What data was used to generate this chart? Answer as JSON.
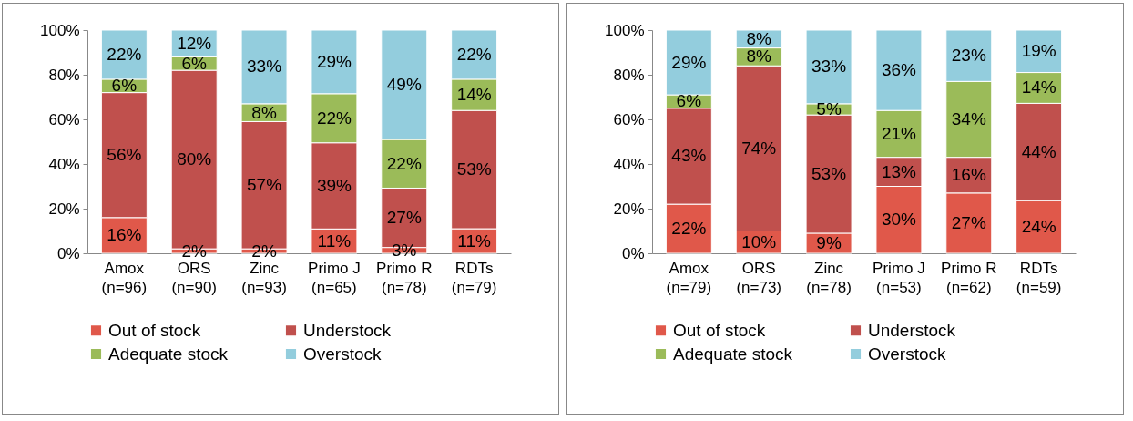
{
  "chart_data": [
    {
      "type": "bar",
      "stacked": true,
      "categories": [
        "Amox (n=96)",
        "ORS (n=90)",
        "Zinc (n=93)",
        "Primo J (n=65)",
        "Primo R (n=78)",
        "RDTs (n=79)"
      ],
      "ylim": [
        0,
        100
      ],
      "yticks": [
        {
          "value": 0,
          "label": "0%"
        },
        {
          "value": 20,
          "label": "20%"
        },
        {
          "value": 40,
          "label": "40%"
        },
        {
          "value": 60,
          "label": "60%"
        },
        {
          "value": 80,
          "label": "80%"
        },
        {
          "value": 100,
          "label": "100%"
        }
      ],
      "grid": false,
      "legend": "bottom",
      "series": [
        {
          "name": "Out of stock",
          "color": "#e0584a",
          "values": [
            16,
            2,
            2,
            10.9,
            2.6,
            11
          ],
          "value_labels": [
            "16%",
            "2%",
            "2%",
            "11%",
            "3%",
            "11%"
          ]
        },
        {
          "name": "Understock",
          "color": "#c0504d",
          "values": [
            56,
            80,
            57,
            38.6,
            26.6,
            53
          ],
          "value_labels": [
            "56%",
            "80%",
            "57%",
            "39%",
            "27%",
            "53%"
          ]
        },
        {
          "name": "Adequate stock",
          "color": "#9bbb59",
          "values": [
            6,
            6,
            8,
            22,
            21.8,
            14
          ],
          "value_labels": [
            "6%",
            "6%",
            "8%",
            "22%",
            "22%",
            "14%"
          ]
        },
        {
          "name": "Overstock",
          "color": "#93cddd",
          "values": [
            22,
            12,
            33,
            28.5,
            49,
            22
          ],
          "value_labels": [
            "22%",
            "12%",
            "33%",
            "29%",
            "49%",
            "22%"
          ]
        }
      ]
    },
    {
      "type": "bar",
      "stacked": true,
      "categories": [
        "Amox (n=79)",
        "ORS (n=73)",
        "Zinc (n=78)",
        "Primo J (n=53)",
        "Primo R (n=62)",
        "RDTs (n=59)"
      ],
      "ylim": [
        0,
        100
      ],
      "yticks": [
        {
          "value": 0,
          "label": "0%"
        },
        {
          "value": 20,
          "label": "20%"
        },
        {
          "value": 40,
          "label": "40%"
        },
        {
          "value": 60,
          "label": "60%"
        },
        {
          "value": 80,
          "label": "80%"
        },
        {
          "value": 100,
          "label": "100%"
        }
      ],
      "grid": false,
      "legend": "bottom",
      "series": [
        {
          "name": "Out of stock",
          "color": "#e0584a",
          "values": [
            22,
            10,
            9,
            30,
            27,
            23.6
          ],
          "value_labels": [
            "22%",
            "10%",
            "9%",
            "30%",
            "27%",
            "24%"
          ]
        },
        {
          "name": "Understock",
          "color": "#c0504d",
          "values": [
            43,
            74,
            53,
            13,
            16,
            43.6
          ],
          "value_labels": [
            "43%",
            "74%",
            "53%",
            "13%",
            "16%",
            "44%"
          ]
        },
        {
          "name": "Adequate stock",
          "color": "#9bbb59",
          "values": [
            6,
            8,
            5,
            21,
            34,
            13.8
          ],
          "value_labels": [
            "6%",
            "8%",
            "5%",
            "21%",
            "34%",
            "14%"
          ]
        },
        {
          "name": "Overstock",
          "color": "#93cddd",
          "values": [
            29,
            8,
            33,
            36,
            23,
            19
          ],
          "value_labels": [
            "29%",
            "8%",
            "33%",
            "36%",
            "23%",
            "19%"
          ]
        }
      ]
    }
  ]
}
